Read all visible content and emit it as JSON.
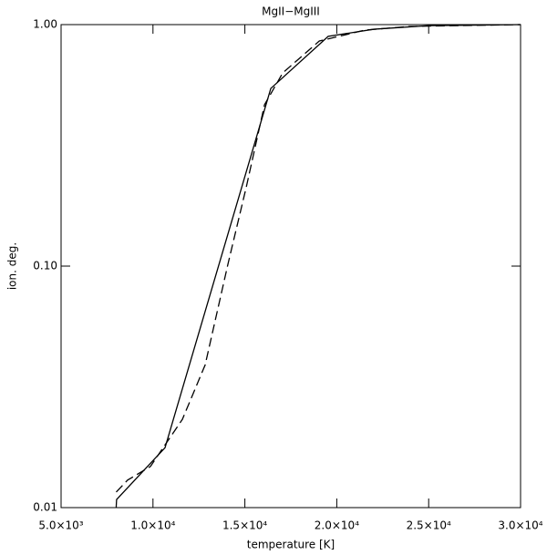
{
  "chart_data": {
    "type": "line",
    "title": "MgII−MgIII",
    "xlabel": "temperature [K]",
    "ylabel": "ion. deg.",
    "xlim": [
      5000,
      30000
    ],
    "ylim": [
      0.01,
      1
    ],
    "ylog": true,
    "xticks": [
      {
        "value": 5000,
        "label": "5.0×10³"
      },
      {
        "value": 10000,
        "label": "1.0×10⁴"
      },
      {
        "value": 15000,
        "label": "1.5×10⁴"
      },
      {
        "value": 20000,
        "label": "2.0×10⁴"
      },
      {
        "value": 25000,
        "label": "2.5×10⁴"
      },
      {
        "value": 30000,
        "label": "3.0×10⁴"
      }
    ],
    "yticks": [
      {
        "value": 0.01,
        "label": "0.01"
      },
      {
        "value": 0.1,
        "label": "0.10"
      },
      {
        "value": 1,
        "label": "1.00"
      }
    ],
    "series": [
      {
        "color": "#000000",
        "dash": "solid",
        "x": [
          8000,
          8000,
          8020,
          10655,
          16410,
          19535,
          22015,
          25000,
          30000
        ],
        "values": [
          0.01,
          0.0101,
          0.0108,
          0.0177,
          0.544,
          0.894,
          0.957,
          0.99,
          1.0
        ]
      },
      {
        "color": "#000000",
        "dash": "dashed",
        "x": [
          8000,
          8620,
          9860,
          11600,
          12840,
          14080,
          15080,
          16070,
          17060,
          19050,
          21530,
          24000,
          30000
        ],
        "values": [
          0.0116,
          0.013,
          0.0148,
          0.0232,
          0.039,
          0.102,
          0.213,
          0.466,
          0.631,
          0.855,
          0.949,
          0.983,
          1.0
        ]
      }
    ]
  }
}
